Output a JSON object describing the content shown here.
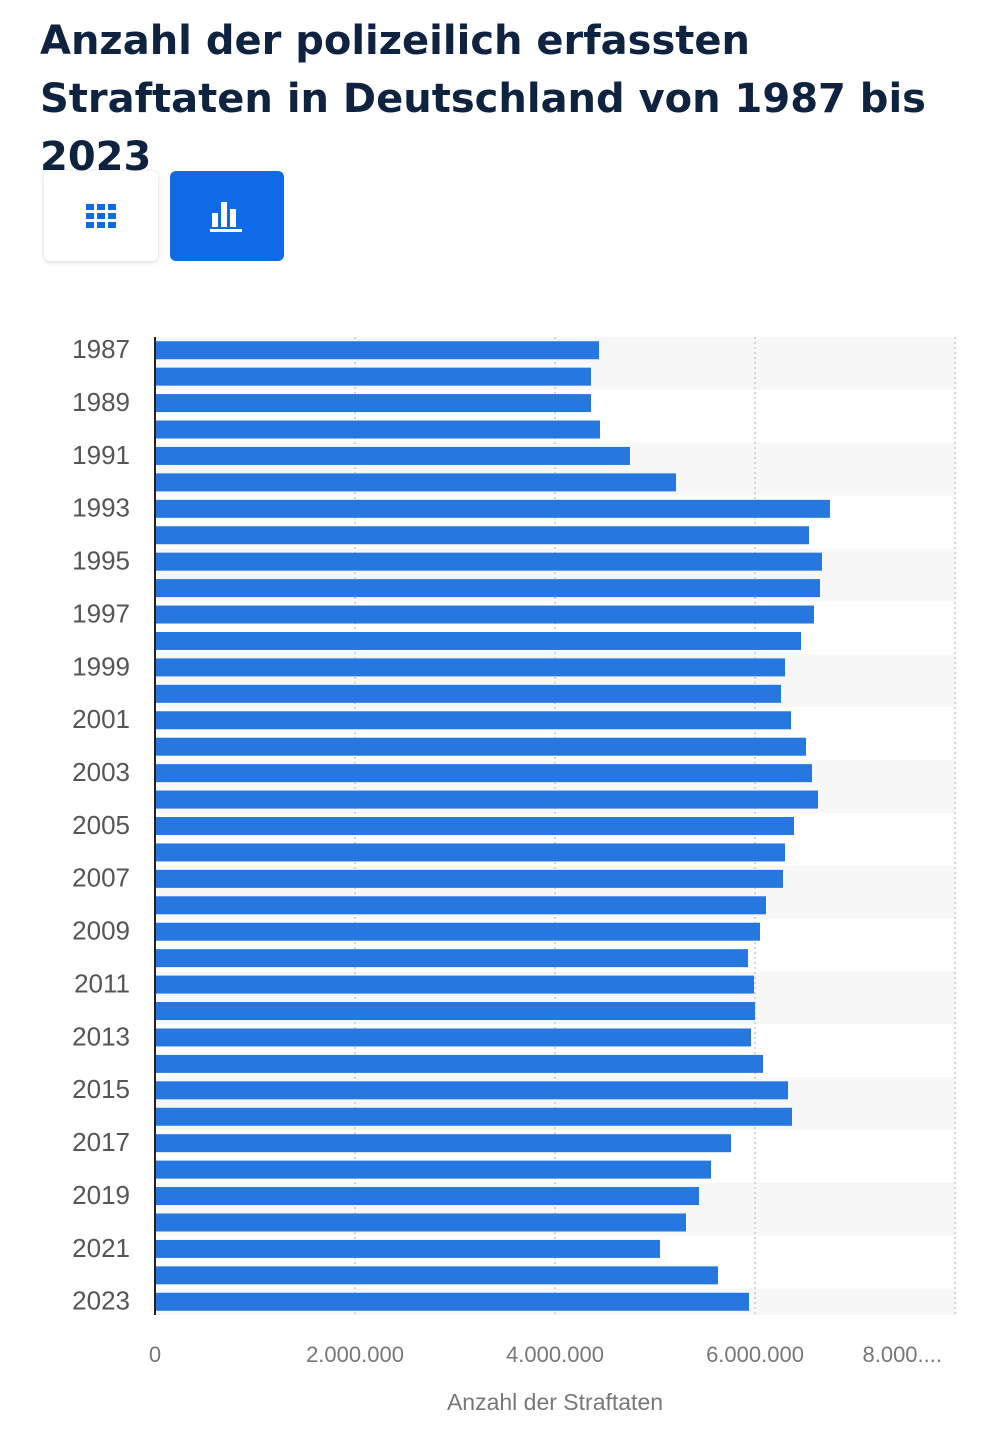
{
  "chart_data": {
    "type": "barh",
    "title": "Anzahl der polizeilich erfassten Straftaten in Deutschland von 1987 bis 2023",
    "xlabel": "Anzahl der Straftaten",
    "categories": [
      "1987",
      null,
      "1989",
      null,
      "1991",
      null,
      "1993",
      null,
      "1995",
      null,
      "1997",
      null,
      "1999",
      null,
      "2001",
      null,
      "2003",
      null,
      "2005",
      null,
      "2007",
      null,
      "2009",
      null,
      "2011",
      null,
      "2013",
      null,
      "2015",
      null,
      "2017",
      null,
      "2019",
      null,
      "2021",
      null,
      "2023"
    ],
    "values": [
      4440000,
      4360000,
      4360000,
      4450000,
      4750000,
      5210000,
      6750000,
      6540000,
      6670000,
      6650000,
      6590000,
      6460000,
      6300000,
      6260000,
      6360000,
      6510000,
      6570000,
      6630000,
      6390000,
      6300000,
      6280000,
      6110000,
      6050000,
      5930000,
      5990000,
      6000000,
      5960000,
      6080000,
      6330000,
      6370000,
      5760000,
      5560000,
      5440000,
      5310000,
      5050000,
      5630000,
      5940000
    ],
    "color": "#2677e0",
    "xlim": [
      0,
      8000000
    ],
    "xticks": [
      0,
      {
        "value": 2000000,
        "label": "2.000.000"
      },
      {
        "value": 4000000,
        "label": "4.000.000"
      },
      {
        "value": 6000000,
        "label": "6.000.000"
      },
      {
        "value": 8000000,
        "label": "8.000...."
      }
    ],
    "grid": true
  }
}
